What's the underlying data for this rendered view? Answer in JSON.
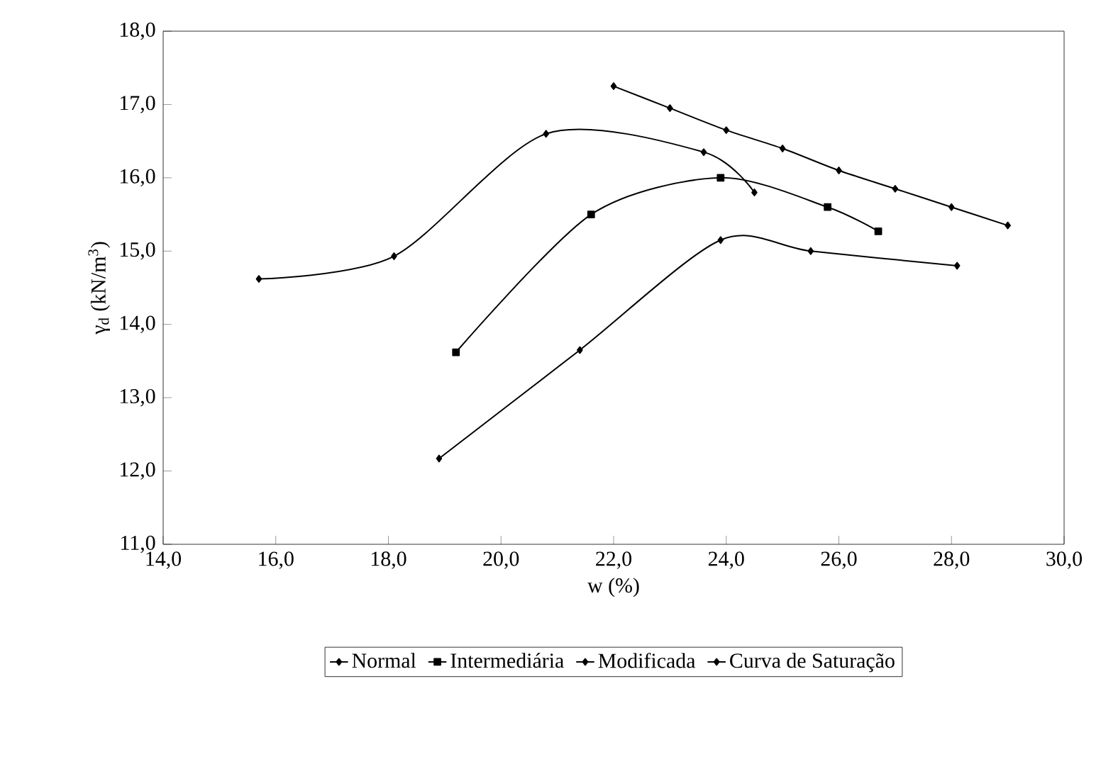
{
  "chart_data": {
    "type": "line",
    "xlabel": "w (%)",
    "ylabel": "γ$_{d}$ (kN/m$^{3}$)",
    "xlim": [
      14,
      30
    ],
    "ylim": [
      11,
      18
    ],
    "xticks": [
      {
        "value": 14,
        "label": "14,0"
      },
      {
        "value": 16,
        "label": "16,0"
      },
      {
        "value": 18,
        "label": "18,0"
      },
      {
        "value": 20,
        "label": "20,0"
      },
      {
        "value": 22,
        "label": "22,0"
      },
      {
        "value": 24,
        "label": "24,0"
      },
      {
        "value": 26,
        "label": "26,0"
      },
      {
        "value": 28,
        "label": "28,0"
      },
      {
        "value": 30,
        "label": "30,0"
      }
    ],
    "yticks": [
      {
        "value": 11,
        "label": "11,0"
      },
      {
        "value": 12,
        "label": "12,0"
      },
      {
        "value": 13,
        "label": "13,0"
      },
      {
        "value": 14,
        "label": "14,0"
      },
      {
        "value": 15,
        "label": "15,0"
      },
      {
        "value": 16,
        "label": "16,0"
      },
      {
        "value": 17,
        "label": "17,0"
      },
      {
        "value": 18,
        "label": "18,0"
      }
    ],
    "grid": false,
    "legend": "bottom",
    "marker": "diamond",
    "line_style": "solid",
    "series": [
      {
        "name": "Normal",
        "color": "#000000",
        "x": [
          18.9,
          21.4,
          23.9,
          25.5,
          28.1
        ],
        "values": [
          12.17,
          13.65,
          15.15,
          15.0,
          14.8
        ]
      },
      {
        "name": "Intermediária",
        "color": "#000000",
        "marker": "square",
        "x": [
          19.2,
          21.6,
          23.9,
          25.8,
          26.7
        ],
        "values": [
          13.62,
          15.5,
          16.0,
          15.6,
          15.27
        ]
      },
      {
        "name": "Modificada",
        "color": "#000000",
        "x": [
          15.7,
          18.1,
          20.8,
          23.6,
          24.5
        ],
        "values": [
          14.62,
          14.93,
          16.6,
          16.35,
          15.8
        ]
      },
      {
        "name": "Curva de Saturação",
        "color": "#000000",
        "x": [
          22,
          23,
          24,
          25,
          26,
          27,
          28,
          29
        ],
        "values": [
          17.25,
          16.95,
          16.65,
          16.4,
          16.1,
          15.85,
          15.6,
          15.35
        ]
      }
    ]
  }
}
